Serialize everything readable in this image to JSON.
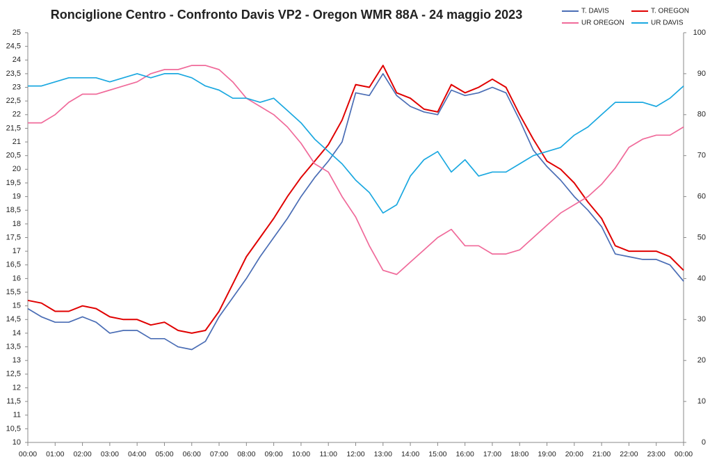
{
  "chart_data": {
    "type": "line",
    "title": "Ronciglione Centro - Confronto Davis VP2  - Oregon WMR 88A - 24 maggio 2023",
    "x": [
      0,
      0.5,
      1,
      1.5,
      2,
      2.5,
      3,
      3.5,
      4,
      4.5,
      5,
      5.5,
      6,
      6.5,
      7,
      7.5,
      8,
      8.5,
      9,
      9.5,
      10,
      10.5,
      11,
      11.5,
      12,
      12.5,
      13,
      13.5,
      14,
      14.5,
      15,
      15.5,
      16,
      16.5,
      17,
      17.5,
      18,
      18.5,
      19,
      19.5,
      20,
      20.5,
      21,
      21.5,
      22,
      22.5,
      23,
      23.5,
      24
    ],
    "xlim": [
      0,
      24
    ],
    "xticks": [
      {
        "value": 0,
        "label": "00:00"
      },
      {
        "value": 1,
        "label": "01:00"
      },
      {
        "value": 2,
        "label": "02:00"
      },
      {
        "value": 3,
        "label": "03:00"
      },
      {
        "value": 4,
        "label": "04:00"
      },
      {
        "value": 5,
        "label": "05:00"
      },
      {
        "value": 6,
        "label": "06:00"
      },
      {
        "value": 7,
        "label": "07:00"
      },
      {
        "value": 8,
        "label": "08:00"
      },
      {
        "value": 9,
        "label": "09:00"
      },
      {
        "value": 10,
        "label": "10:00"
      },
      {
        "value": 11,
        "label": "11:00"
      },
      {
        "value": 12,
        "label": "12:00"
      },
      {
        "value": 13,
        "label": "13:00"
      },
      {
        "value": 14,
        "label": "14:00"
      },
      {
        "value": 15,
        "label": "15:00"
      },
      {
        "value": 16,
        "label": "16:00"
      },
      {
        "value": 17,
        "label": "17:00"
      },
      {
        "value": 18,
        "label": "18:00"
      },
      {
        "value": 19,
        "label": "19:00"
      },
      {
        "value": 20,
        "label": "20:00"
      },
      {
        "value": 21,
        "label": "21:00"
      },
      {
        "value": 22,
        "label": "22:00"
      },
      {
        "value": 23,
        "label": "23:00"
      },
      {
        "value": 24,
        "label": "00:00"
      }
    ],
    "ylim": [
      10,
      25
    ],
    "yticks": [
      10,
      {
        "value": 10.5,
        "label": "10,5"
      },
      11,
      {
        "value": 11.5,
        "label": "11,5"
      },
      12,
      {
        "value": 12.5,
        "label": "12,5"
      },
      13,
      {
        "value": 13.5,
        "label": "13,5"
      },
      14,
      {
        "value": 14.5,
        "label": "14,5"
      },
      15,
      {
        "value": 15.5,
        "label": "15,5"
      },
      16,
      {
        "value": 16.5,
        "label": "16,5"
      },
      17,
      {
        "value": 17.5,
        "label": "17,5"
      },
      18,
      {
        "value": 18.5,
        "label": "18,5"
      },
      19,
      {
        "value": 19.5,
        "label": "19,5"
      },
      20,
      {
        "value": 20.5,
        "label": "20,5"
      },
      21,
      {
        "value": 21.5,
        "label": "21,5"
      },
      22,
      {
        "value": 22.5,
        "label": "22,5"
      },
      23,
      {
        "value": 23.5,
        "label": "23,5"
      },
      24,
      {
        "value": 24.5,
        "label": "24,5"
      },
      25
    ],
    "y2lim": [
      0,
      100
    ],
    "y2ticks": [
      0,
      10,
      20,
      30,
      40,
      50,
      60,
      70,
      80,
      90,
      100
    ],
    "grid": false,
    "legend": "top-right",
    "series": [
      {
        "name": "T. DAVIS",
        "color": "#4a6db5",
        "values": [
          14.9,
          14.6,
          14.4,
          14.4,
          14.6,
          14.4,
          14.0,
          14.1,
          14.1,
          13.8,
          13.8,
          13.5,
          13.4,
          13.7,
          14.6,
          15.3,
          16.0,
          16.8,
          17.5,
          18.2,
          19.0,
          19.7,
          20.3,
          21.0,
          22.8,
          22.7,
          23.5,
          22.7,
          22.3,
          22.1,
          22.0,
          22.9,
          22.7,
          22.8,
          23.0,
          22.8,
          21.8,
          20.7,
          20.1,
          19.6,
          19.0,
          18.5,
          17.9,
          16.9,
          16.8,
          16.7,
          16.7,
          16.5,
          15.9
        ]
      },
      {
        "name": "T. OREGON",
        "color": "#e00000",
        "values": [
          15.2,
          15.1,
          14.8,
          14.8,
          15.0,
          14.9,
          14.6,
          14.5,
          14.5,
          14.3,
          14.4,
          14.1,
          14.0,
          14.1,
          14.8,
          15.8,
          16.8,
          17.5,
          18.2,
          19.0,
          19.7,
          20.3,
          20.9,
          21.8,
          23.1,
          23.0,
          23.8,
          22.8,
          22.6,
          22.2,
          22.1,
          23.1,
          22.8,
          23.0,
          23.3,
          23.0,
          22.0,
          21.1,
          20.3,
          20.0,
          19.5,
          18.8,
          18.2,
          17.2,
          17.0,
          17.0,
          17.0,
          16.8,
          16.3
        ]
      },
      {
        "name": "UR OREGON",
        "color": "#f06a9a",
        "axis": "y2",
        "values": [
          78,
          78,
          80,
          83,
          85,
          85,
          86,
          87,
          88,
          90,
          91,
          91,
          92,
          92,
          91,
          88,
          84,
          82,
          80,
          77,
          73,
          68,
          66,
          60,
          55,
          48,
          42,
          41,
          44,
          47,
          50,
          52,
          48,
          48,
          46,
          46,
          47,
          50,
          53,
          56,
          58,
          60,
          63,
          67,
          72,
          74,
          75,
          75,
          77
        ]
      },
      {
        "name": "UR DAVIS",
        "color": "#1aa8e0",
        "axis": "y2",
        "values": [
          87,
          87,
          88,
          89,
          89,
          89,
          88,
          89,
          90,
          89,
          90,
          90,
          89,
          87,
          86,
          84,
          84,
          83,
          84,
          81,
          78,
          74,
          71,
          68,
          64,
          61,
          56,
          58,
          65,
          69,
          71,
          66,
          69,
          65,
          66,
          66,
          68,
          70,
          71,
          72,
          75,
          77,
          80,
          83,
          83,
          83,
          82,
          84,
          87
        ]
      }
    ]
  }
}
